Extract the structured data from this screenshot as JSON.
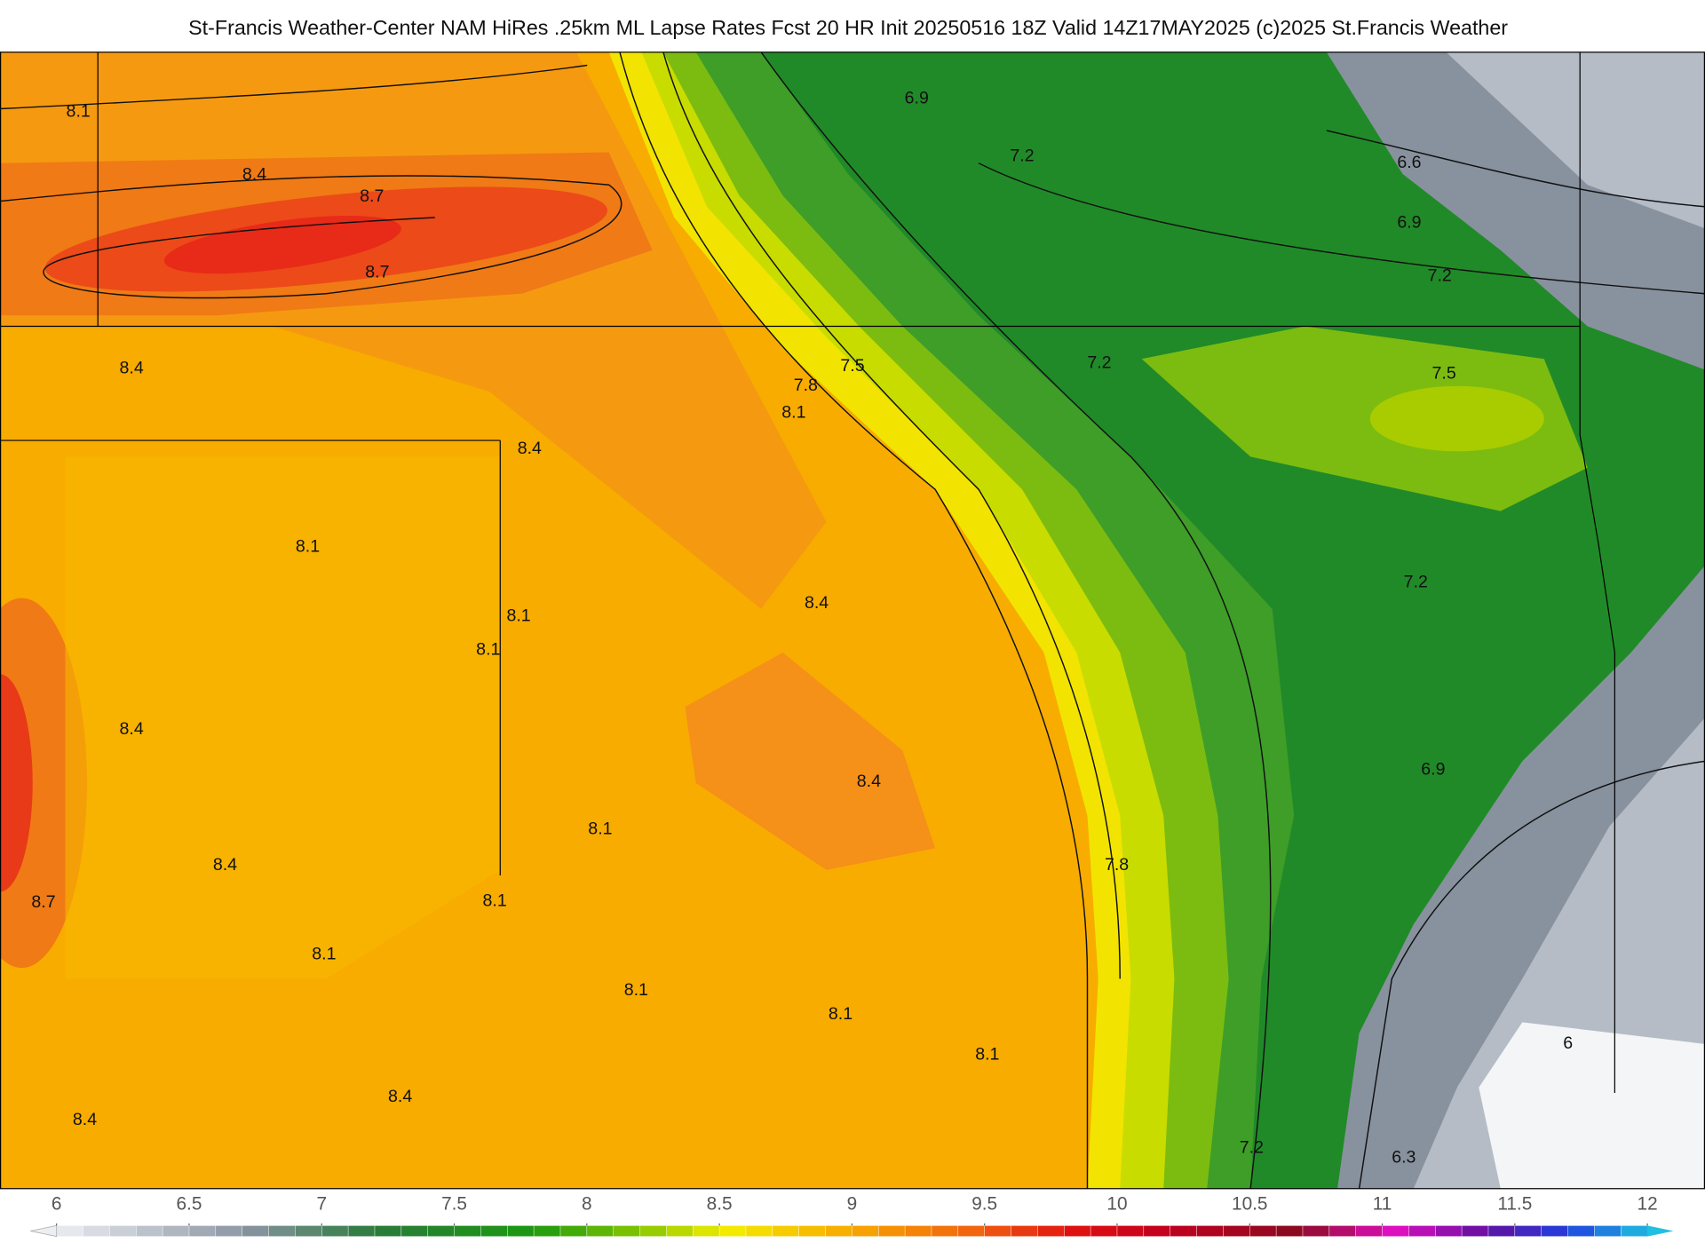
{
  "title": "St-Francis Weather-Center NAM HiRes .25km ML Lapse Rates  Fcst 20 HR Init 20250516 18Z  Valid 14Z17MAY2025    (c)2025 St.Francis Weather",
  "contour_labels": [
    8.1,
    8.4,
    8.7,
    8.7,
    6.9,
    7.2,
    6.6,
    6.9,
    7.2,
    8.4,
    7.5,
    7.8,
    8.1,
    7.2,
    7.5,
    8.4,
    8.1,
    8.4,
    7.2,
    8.1,
    8.1,
    8.4,
    6.9,
    8.4,
    8.1,
    7.8,
    8.4,
    8.7,
    8.1,
    8.1,
    8.1,
    8.1,
    8.1,
    6,
    8.4,
    8.4,
    7.2,
    6.3
  ],
  "colorbar": {
    "ticks": [
      6,
      6.5,
      7,
      7.5,
      8,
      8.5,
      9,
      9.5,
      10,
      10.5,
      11,
      11.5,
      12
    ]
  }
}
